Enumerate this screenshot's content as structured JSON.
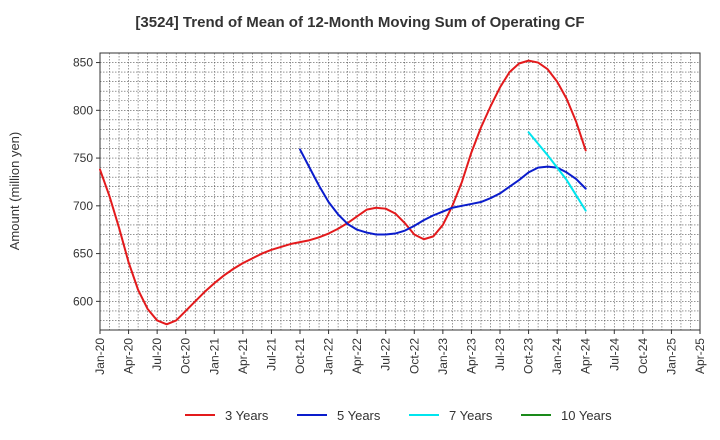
{
  "chart_data": {
    "type": "line",
    "title": "[3524]  Trend of Mean of 12-Month Moving Sum of Operating CF",
    "xlabel": "",
    "ylabel": "Amount (million yen)",
    "ylim": [
      570,
      860
    ],
    "y_ticks": [
      600,
      650,
      700,
      750,
      800,
      850
    ],
    "x_categories": [
      "Jan-20",
      "Apr-20",
      "Jul-20",
      "Oct-20",
      "Jan-21",
      "Apr-21",
      "Jul-21",
      "Oct-21",
      "Jan-22",
      "Apr-22",
      "Jul-22",
      "Oct-22",
      "Jan-23",
      "Apr-23",
      "Jul-23",
      "Oct-23",
      "Jan-24",
      "Apr-24",
      "Jul-24",
      "Oct-24",
      "Jan-25",
      "Apr-25"
    ],
    "grid": true,
    "legend_position": "bottom",
    "series": [
      {
        "name": "3 Years",
        "color": "#e31a1c",
        "x": [
          0,
          1,
          2,
          3,
          4,
          5,
          6,
          7,
          8,
          9,
          10,
          11,
          12,
          13,
          14,
          15,
          16,
          17,
          18,
          19,
          20,
          21,
          22,
          23,
          24,
          25,
          26,
          27,
          28,
          29,
          30,
          31,
          32,
          33,
          34,
          35,
          36,
          37,
          38,
          39,
          40,
          41,
          42,
          43,
          44,
          45,
          46,
          47,
          48,
          49,
          50,
          51
        ],
        "values": [
          738,
          710,
          677,
          641,
          612,
          592,
          580,
          576,
          580,
          590,
          600,
          610,
          619,
          627,
          634,
          640,
          645,
          650,
          654,
          657,
          660,
          662,
          664,
          667,
          671,
          676,
          682,
          689,
          696,
          698,
          697,
          692,
          682,
          670,
          665,
          668,
          680,
          700,
          725,
          756,
          782,
          804,
          824,
          840,
          849,
          852,
          850,
          843,
          830,
          812,
          788,
          758
        ]
      },
      {
        "name": "5 Years",
        "color": "#0a1ccc",
        "x": [
          21,
          22,
          23,
          24,
          25,
          26,
          27,
          28,
          29,
          30,
          31,
          32,
          33,
          34,
          35,
          36,
          37,
          38,
          39,
          40,
          41,
          42,
          43,
          44,
          45,
          46,
          47,
          48,
          49,
          50,
          51
        ],
        "values": [
          759,
          740,
          721,
          704,
          691,
          681,
          675,
          672,
          670,
          670,
          671,
          674,
          679,
          685,
          690,
          694,
          698,
          700,
          702,
          704,
          708,
          713,
          720,
          727,
          735,
          740,
          741,
          740,
          735,
          728,
          718
        ]
      },
      {
        "name": "7 Years",
        "color": "#00e5ee",
        "x": [
          45,
          46,
          47,
          48,
          49,
          50,
          51
        ],
        "values": [
          777,
          765,
          753,
          740,
          727,
          711,
          695
        ]
      },
      {
        "name": "10 Years",
        "color": "#1a8a1a",
        "x": [],
        "values": []
      }
    ]
  }
}
